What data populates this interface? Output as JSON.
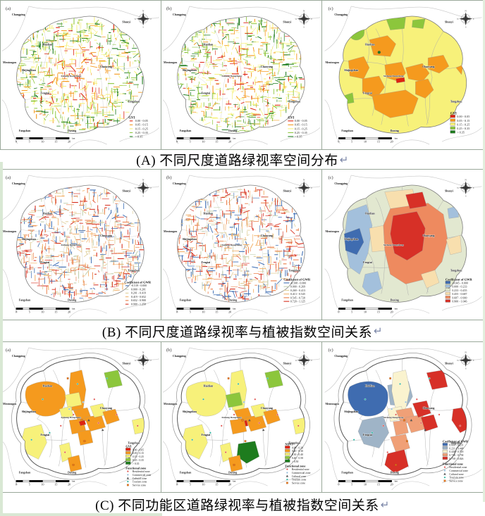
{
  "captions": [
    {
      "text": "(A) 不同尺度道路绿视率空间分布",
      "mark": "↵"
    },
    {
      "text": "(B) 不同尺度道路绿视率与植被指数空间关系",
      "mark": "↵"
    },
    {
      "text": "(C) 不同功能区道路绿视率与植被指数空间关系",
      "mark": "↵"
    }
  ],
  "compass": {
    "n": "N",
    "e": "E",
    "s": "S",
    "w": "W"
  },
  "scalebar": {
    "ticks": [
      "0",
      "5",
      "10",
      "15",
      "20"
    ],
    "unit": "km"
  },
  "districts": [
    "Changping",
    "Shunyi",
    "Haidian",
    "Mentougou",
    "Shijingshan",
    "Chaoyang",
    "Xicheng Dongcheng",
    "Fengtai",
    "Tongzhou",
    "Fangshan",
    "Daxing"
  ],
  "palettes": {
    "gvi": [
      "#de2310",
      "#f59a1e",
      "#f7f17a",
      "#8cc63c",
      "#1e7c1e"
    ],
    "gwr_road": [
      "#3f6fb5",
      "#c2cfb0",
      "#e0cf9a",
      "#f2b36e",
      "#ea7b45",
      "#d62e1e"
    ],
    "gwr_poly6": [
      "#3f6cb0",
      "#a3c0dc",
      "#dfe5cb",
      "#f8dfae",
      "#ee8a5f",
      "#d73027"
    ],
    "gwr_poly5": [
      "#3f6cb0",
      "#9fb4c7",
      "#faf3cf",
      "#f0a077",
      "#d73027"
    ],
    "zones": [
      "#e0524e",
      "#8fbbd9",
      "#5a5a5a",
      "#27b5a2",
      "#f07a1f"
    ]
  },
  "panels": [
    {
      "letter": "(a)",
      "legends": [
        {
          "title": "GVI",
          "palette": "gvi",
          "items": [
            "0.00 - 0.05",
            "0.05 - 0.15",
            "0.15 - 0.25",
            "0.25 - 0.35",
            "> 0.35"
          ]
        }
      ]
    },
    {
      "letter": "(b)",
      "legends": [
        {
          "title": "GVI",
          "palette": "gvi",
          "items": [
            "0.00 - 0.05",
            "0.05 - 0.15",
            "0.15 - 0.25",
            "0.25 - 0.35",
            "> 0.35"
          ]
        }
      ]
    },
    {
      "letter": "(c)",
      "legends": [
        {
          "title": "GVI",
          "palette": "gvi",
          "items": [
            "0.00 - 0.05",
            "0.05 - 0.15",
            "0.15 - 0.25",
            "0.25 - 0.35",
            "> 0.35"
          ]
        }
      ]
    },
    {
      "letter": "(a)",
      "legends": [
        {
          "title": "Coefficient of GWR",
          "palette": "gwr_road",
          "items": [
            "-0.519 - 0.000",
            "0.000 - 0.201",
            "0.201 - 0.419",
            "0.419 - 0.652",
            "0.652 - 0.900",
            "0.900 - 1.250"
          ]
        }
      ]
    },
    {
      "letter": "(b)",
      "legends": [
        {
          "title": "Coefficient of GWR",
          "palette": "gwr_road",
          "items": [
            "-0.508 - 0.000",
            "0.000 - 0.269",
            "0.269 - 0.413",
            "0.413 - 0.545",
            "0.545 - 0.720",
            "0.720 - 1.125"
          ]
        }
      ]
    },
    {
      "letter": "(c)",
      "legends": [
        {
          "title": "Coefficient of GWR",
          "palette": "gwr_poly6",
          "items": [
            "-0.045 - 0.000",
            "0.000 - 0.233",
            "0.233 - 0.455",
            "0.455 - 0.687",
            "0.687 - 0.900",
            "0.900 - 1.046"
          ]
        }
      ]
    },
    {
      "letter": "(a)",
      "legends": [
        {
          "title": "GVI",
          "palette": "gvi",
          "items": [
            "0.00 - 0.05",
            "0.05 - 0.15",
            "0.15 - 0.25",
            "0.25 - 0.35",
            "> 0.35"
          ]
        },
        {
          "title": "Functional zone",
          "palette": "zones",
          "items": [
            "Residential zone",
            "Commercial zone",
            "Cultural zone",
            "Tourism zone",
            "Service zone"
          ]
        }
      ]
    },
    {
      "letter": "(b)",
      "legends": [
        {
          "title": "NDVI",
          "palette": "gvi",
          "items": [
            "0.00 - 0.20",
            "0.20 - 0.30",
            "0.30 - 0.40",
            "0.40 - 0.50",
            "> 0.50"
          ]
        },
        {
          "title": "Functional zone",
          "palette": "zones",
          "items": [
            "Residential zone",
            "Commercial zone",
            "Cultural zone",
            "Tourism zone",
            "Service zone"
          ]
        }
      ]
    },
    {
      "letter": "(c)",
      "legends": [
        {
          "title": "Coefficient of GWR",
          "palette": "gwr_poly5",
          "items": [
            "0.000 - 0.231",
            "0.231 - 0.448",
            "0.448 - 0.718",
            "0.718 - 0.758",
            "0.758 - 0.826"
          ]
        },
        {
          "title": "Functional zone",
          "palette": "zones",
          "items": [
            "Residential zone",
            "Commercial zone",
            "Cultural zone",
            "Tourism zone",
            "Service zone"
          ]
        }
      ]
    }
  ]
}
